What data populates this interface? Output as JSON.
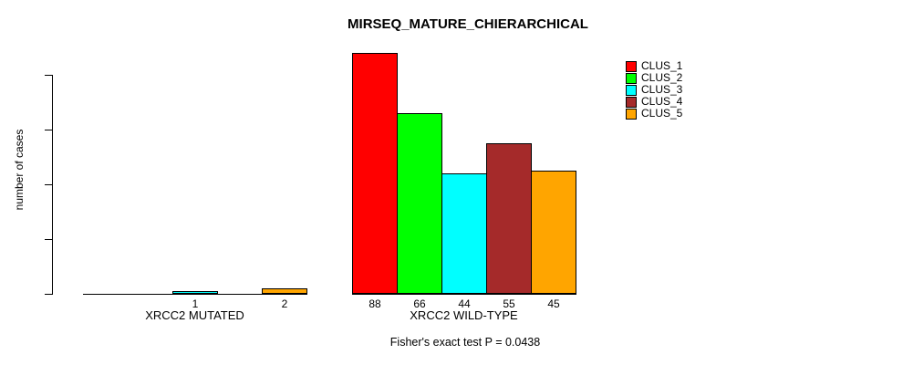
{
  "chart_data": {
    "type": "bar",
    "title": "MIRSEQ_MATURE_CHIERARCHICAL",
    "xlabel": "",
    "ylabel": "number of cases",
    "ylim": [
      0,
      88
    ],
    "yticks": [
      0,
      20,
      40,
      60,
      80
    ],
    "grid": false,
    "legend_position": "top-right",
    "legend": [
      "CLUS_1",
      "CLUS_2",
      "CLUS_3",
      "CLUS_4",
      "CLUS_5"
    ],
    "colors": [
      "#FF0000",
      "#00FF00",
      "#00FFFF",
      "#A52A2A",
      "#FFA500"
    ],
    "groups": [
      {
        "label": "XRCC2 MUTATED",
        "values": [
          0,
          0,
          1,
          0,
          2
        ]
      },
      {
        "label": "XRCC2 WILD-TYPE",
        "values": [
          88,
          66,
          44,
          55,
          45
        ]
      }
    ],
    "bar_value_labels_shown": true,
    "annotation": "Fisher's exact test P = 0.0438"
  }
}
